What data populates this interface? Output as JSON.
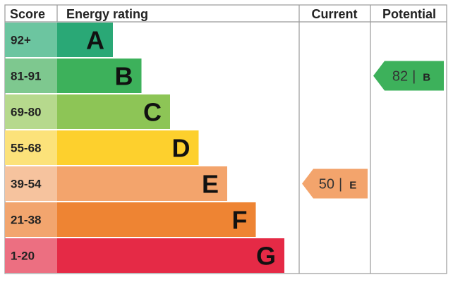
{
  "headers": {
    "score": "Score",
    "energy_rating": "Energy rating",
    "current": "Current",
    "potential": "Potential"
  },
  "chart_data": {
    "type": "bar",
    "categories": [
      "A",
      "B",
      "C",
      "D",
      "E",
      "F",
      "G"
    ],
    "score_ranges": [
      "92+",
      "81-91",
      "69-80",
      "55-68",
      "39-54",
      "21-38",
      "1-20"
    ],
    "bands": [
      {
        "letter": "A",
        "range": "92+",
        "color": "#2aa876",
        "label_bg": "#6cc5a0"
      },
      {
        "letter": "B",
        "range": "81-91",
        "color": "#3db15b",
        "label_bg": "#7ec88f"
      },
      {
        "letter": "C",
        "range": "69-80",
        "color": "#8dc556",
        "label_bg": "#b6d98d"
      },
      {
        "letter": "D",
        "range": "55-68",
        "color": "#fdd02d",
        "label_bg": "#fce27a"
      },
      {
        "letter": "E",
        "range": "39-54",
        "color": "#f3a46c",
        "label_bg": "#f6c39e"
      },
      {
        "letter": "F",
        "range": "21-38",
        "color": "#ee8433",
        "label_bg": "#f2a56e"
      },
      {
        "letter": "G",
        "range": "1-20",
        "color": "#e52a46",
        "label_bg": "#ec6f81"
      }
    ],
    "current": {
      "value": 50,
      "band": "E",
      "color": "#f3a46c"
    },
    "potential": {
      "value": 82,
      "band": "B",
      "color": "#3db15b"
    },
    "separator": "|"
  }
}
